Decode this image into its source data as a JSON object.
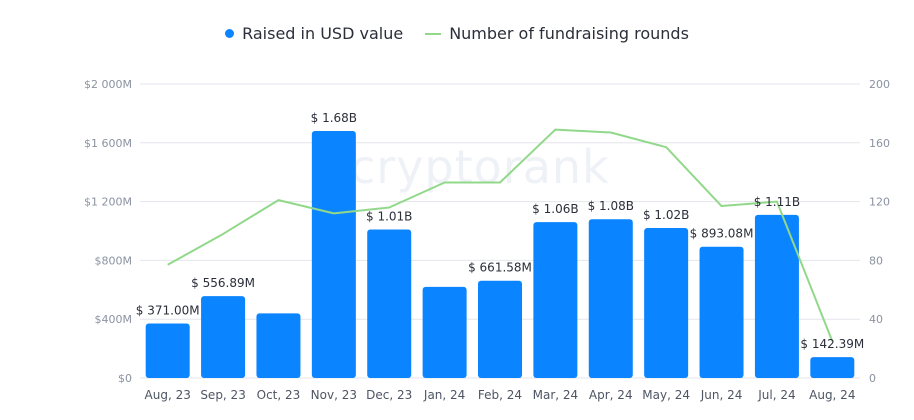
{
  "legend": {
    "bars_label": "Raised in USD value",
    "line_label": "Number of fundraising rounds"
  },
  "watermark": "cryptorank",
  "colors": {
    "bar": "#0b84ff",
    "line": "#92d88a",
    "grid": "#e3e6ec"
  },
  "chart_data": {
    "type": "bar",
    "categories": [
      "Aug, 23",
      "Sep, 23",
      "Oct, 23",
      "Nov, 23",
      "Dec, 23",
      "Jan, 24",
      "Feb, 24",
      "Mar, 24",
      "Apr, 24",
      "May, 24",
      "Jun, 24",
      "Jul, 24",
      "Aug, 24"
    ],
    "series": [
      {
        "name": "Raised in USD value",
        "type": "bar",
        "axis": "left",
        "values": [
          371.0,
          556.89,
          440,
          1680,
          1010,
          620,
          661.58,
          1060,
          1080,
          1020,
          893.08,
          1110,
          142.39
        ],
        "data_labels": [
          "$ 371.00M",
          "$ 556.89M",
          "",
          "$ 1.68B",
          "$ 1.01B",
          "",
          "$ 661.58M",
          "$ 1.06B",
          "$ 1.08B",
          "$ 1.02B",
          "$ 893.08M",
          "$ 1.11B",
          "$ 142.39M"
        ]
      },
      {
        "name": "Number of fundraising rounds",
        "type": "line",
        "axis": "right",
        "values": [
          77,
          98,
          121,
          112,
          116,
          133,
          133,
          169,
          167,
          157,
          117,
          120,
          25
        ]
      }
    ],
    "y_left": {
      "ylim": [
        0,
        2000
      ],
      "ticks": [
        0,
        400,
        800,
        1200,
        1600,
        2000
      ],
      "tick_labels": [
        "$0",
        "$400M",
        "$800M",
        "$1 200M",
        "$1 600M",
        "$2 000M"
      ]
    },
    "y_right": {
      "ylim": [
        0,
        200
      ],
      "ticks": [
        0,
        40,
        80,
        120,
        160,
        200
      ],
      "tick_labels": [
        "0",
        "40",
        "80",
        "120",
        "160",
        "200"
      ]
    },
    "grid": true,
    "legend_position": "top-center"
  }
}
